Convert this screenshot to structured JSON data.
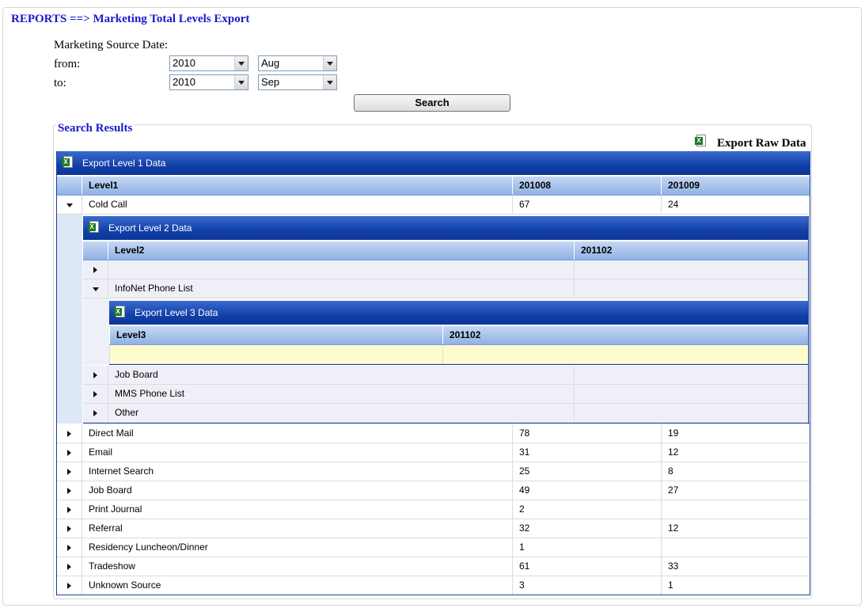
{
  "page": {
    "title": "REPORTS ==> Marketing Total Levels Export"
  },
  "filters": {
    "heading": "Marketing Source Date:",
    "from_label": "from:",
    "to_label": "to:",
    "from_year": "2010",
    "from_month": "Aug",
    "to_year": "2010",
    "to_month": "Sep",
    "search_label": "Search"
  },
  "results": {
    "title": "Search Results",
    "export_raw_label": "Export Raw Data",
    "level1": {
      "export_label": "Export Level 1 Data",
      "columns": [
        "Level1",
        "201008",
        "201009"
      ],
      "rows": [
        {
          "name": "Cold Call",
          "a": "67",
          "b": "24"
        },
        {
          "name": "Direct Mail",
          "a": "78",
          "b": "19"
        },
        {
          "name": "Email",
          "a": "31",
          "b": "12"
        },
        {
          "name": "Internet Search",
          "a": "25",
          "b": "8"
        },
        {
          "name": "Job Board",
          "a": "49",
          "b": "27"
        },
        {
          "name": "Print Journal",
          "a": "2",
          "b": ""
        },
        {
          "name": "Referral",
          "a": "32",
          "b": "12"
        },
        {
          "name": "Residency Luncheon/Dinner",
          "a": "1",
          "b": ""
        },
        {
          "name": "Tradeshow",
          "a": "61",
          "b": "33"
        },
        {
          "name": "Unknown Source",
          "a": "3",
          "b": "1"
        }
      ]
    },
    "level2": {
      "export_label": "Export Level 2 Data",
      "columns": [
        "Level2",
        "201102"
      ],
      "rows": [
        {
          "name": "",
          "a": ""
        },
        {
          "name": "InfoNet Phone List",
          "a": ""
        },
        {
          "name": "Job Board",
          "a": ""
        },
        {
          "name": "MMS Phone List",
          "a": ""
        },
        {
          "name": "Other",
          "a": ""
        }
      ]
    },
    "level3": {
      "export_label": "Export Level 3 Data",
      "columns": [
        "Level3",
        "201102"
      ],
      "rows": [
        {
          "name": "",
          "a": ""
        }
      ]
    }
  }
}
